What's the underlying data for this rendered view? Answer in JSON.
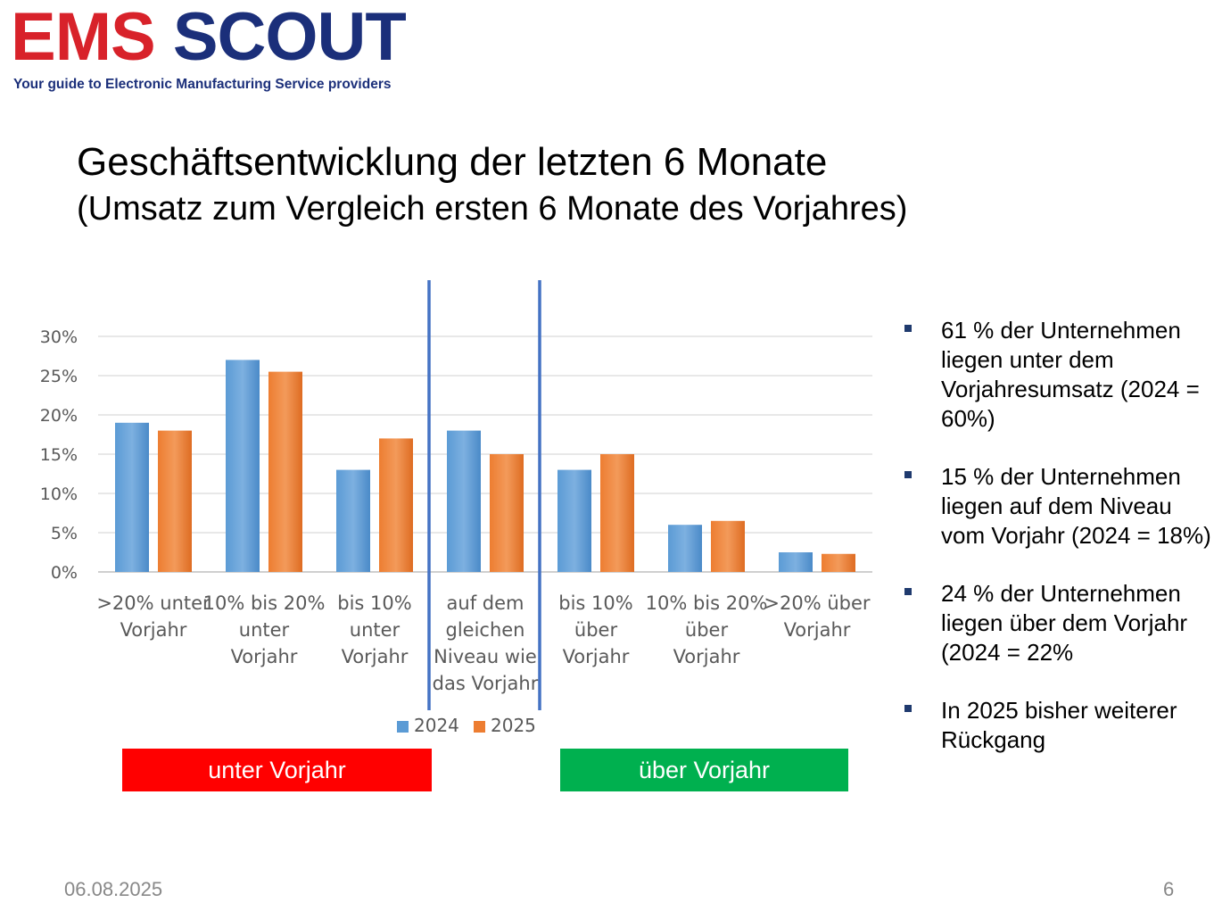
{
  "logo": {
    "part1": "EMS",
    "part2": "SCOUT",
    "tagline": "Your guide to Electronic Manufacturing Service providers"
  },
  "title": "Geschäftsentwicklung der letzten 6 Monate",
  "subtitle": "(Umsatz zum Vergleich ersten 6 Monate des Vorjahres)",
  "colors": {
    "series_2024": "#5b9bd5",
    "series_2025": "#ed7d31",
    "divider": "#4472c4",
    "box_red": "#ff0000",
    "box_green": "#00b04f",
    "logo_red": "#d8222a",
    "logo_blue": "#1b2f7a"
  },
  "chart_data": {
    "type": "bar",
    "categories": [
      [
        ">20% unter",
        "Vorjahr"
      ],
      [
        "10% bis 20%",
        "unter",
        "Vorjahr"
      ],
      [
        "bis 10%",
        "unter",
        "Vorjahr"
      ],
      [
        "auf dem",
        "gleichen",
        "Niveau wie",
        "das Vorjahr"
      ],
      [
        "bis 10%",
        "über",
        "Vorjahr"
      ],
      [
        "10% bis 20%",
        "über",
        "Vorjahr"
      ],
      [
        ">20% über",
        "Vorjahr"
      ]
    ],
    "series": [
      {
        "name": "2024",
        "values": [
          19,
          27,
          13,
          18,
          13,
          6,
          2.5
        ]
      },
      {
        "name": "2025",
        "values": [
          18,
          25.5,
          17,
          15,
          15,
          6.5,
          2.3
        ]
      }
    ],
    "yticks": [
      "0%",
      "5%",
      "10%",
      "15%",
      "20%",
      "25%",
      "30%"
    ],
    "ylim": [
      0,
      30
    ],
    "grid": true,
    "legend_position": "bottom",
    "dividers_after_category": [
      3,
      4
    ]
  },
  "boxes": {
    "left": "unter Vorjahr",
    "right": "über Vorjahr"
  },
  "bullets": [
    "61 % der Unternehmen liegen unter dem Vorjahresumsatz (2024 = 60%)",
    "15 % der Unternehmen liegen auf dem Niveau vom Vorjahr (2024 = 18%)",
    "24 % der Unternehmen liegen über dem Vorjahr (2024 = 22%",
    "In 2025 bisher weiterer Rückgang"
  ],
  "footer": {
    "date": "06.08.2025",
    "page": "6"
  }
}
